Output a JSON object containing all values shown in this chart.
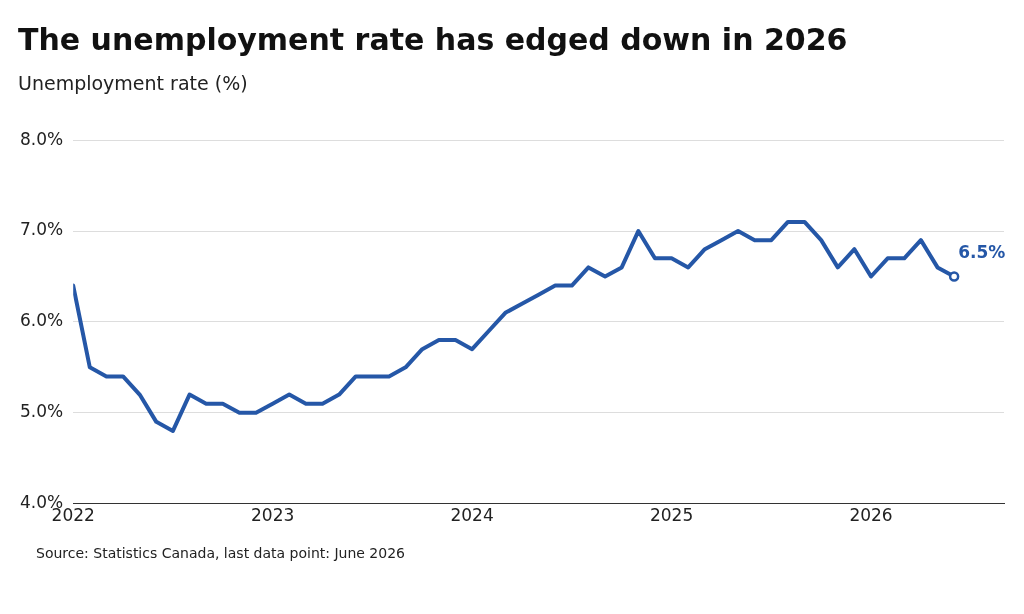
{
  "chart_data": {
    "type": "line",
    "title": "The unemployment rate has edged down in 2026",
    "ylabel": "Unemployment rate (%)",
    "x": [
      "2022-01",
      "2022-02",
      "2022-03",
      "2022-04",
      "2022-05",
      "2022-06",
      "2022-07",
      "2022-08",
      "2022-09",
      "2022-10",
      "2022-11",
      "2022-12",
      "2023-01",
      "2023-02",
      "2023-03",
      "2023-04",
      "2023-05",
      "2023-06",
      "2023-07",
      "2023-08",
      "2023-09",
      "2023-10",
      "2023-11",
      "2023-12",
      "2024-01",
      "2024-02",
      "2024-03",
      "2024-04",
      "2024-05",
      "2024-06",
      "2024-07",
      "2024-08",
      "2024-09",
      "2024-10",
      "2024-11",
      "2024-12",
      "2025-01",
      "2025-02",
      "2025-03",
      "2025-04",
      "2025-05",
      "2025-06",
      "2025-07",
      "2025-08",
      "2025-09",
      "2025-10",
      "2025-11",
      "2025-12",
      "2026-01",
      "2026-02",
      "2026-03",
      "2026-04",
      "2026-05",
      "2026-06"
    ],
    "series": [
      {
        "color": "#2557a7",
        "values": [
          6.4,
          5.5,
          5.4,
          5.4,
          5.2,
          4.9,
          4.8,
          5.2,
          5.1,
          5.1,
          5.0,
          5.0,
          5.1,
          5.2,
          5.1,
          5.1,
          5.2,
          5.4,
          5.4,
          5.4,
          5.5,
          5.7,
          5.8,
          5.8,
          5.7,
          5.9,
          6.1,
          6.2,
          6.3,
          6.4,
          6.4,
          6.6,
          6.5,
          6.6,
          7.0,
          6.7,
          6.7,
          6.6,
          6.8,
          6.9,
          7.0,
          6.9,
          6.9,
          7.1,
          7.1,
          6.9,
          6.6,
          6.8,
          6.5,
          6.7,
          6.7,
          6.9,
          6.6,
          6.5
        ],
        "value_labels": [
          null,
          null,
          null,
          null,
          null,
          null,
          null,
          null,
          null,
          null,
          null,
          null,
          null,
          null,
          null,
          null,
          null,
          null,
          null,
          null,
          null,
          null,
          null,
          null,
          null,
          null,
          null,
          null,
          null,
          null,
          null,
          null,
          null,
          null,
          null,
          null,
          null,
          null,
          null,
          null,
          null,
          null,
          null,
          null,
          null,
          null,
          null,
          null,
          null,
          null,
          null,
          null,
          null,
          "6.5%"
        ]
      }
    ],
    "xlim": [
      "2022-01",
      "2026-09"
    ],
    "xticks": [
      {
        "value": "2022",
        "label": "2022"
      },
      {
        "value": "2023",
        "label": "2023"
      },
      {
        "value": "2024",
        "label": "2024"
      },
      {
        "value": "2025",
        "label": "2025"
      },
      {
        "value": "2026",
        "label": "2026"
      }
    ],
    "ylim": [
      4,
      8
    ],
    "yticks": [
      {
        "value": 4,
        "label": "4.0%"
      },
      {
        "value": 5,
        "label": "5.0%"
      },
      {
        "value": 6,
        "label": "6.0%"
      },
      {
        "value": 7,
        "label": "7.0%"
      },
      {
        "value": 8,
        "label": "8.0%"
      }
    ],
    "grid": "y",
    "legend": false,
    "annotations": [
      "Source: Statistics Canada, last data point: June 2026"
    ]
  }
}
